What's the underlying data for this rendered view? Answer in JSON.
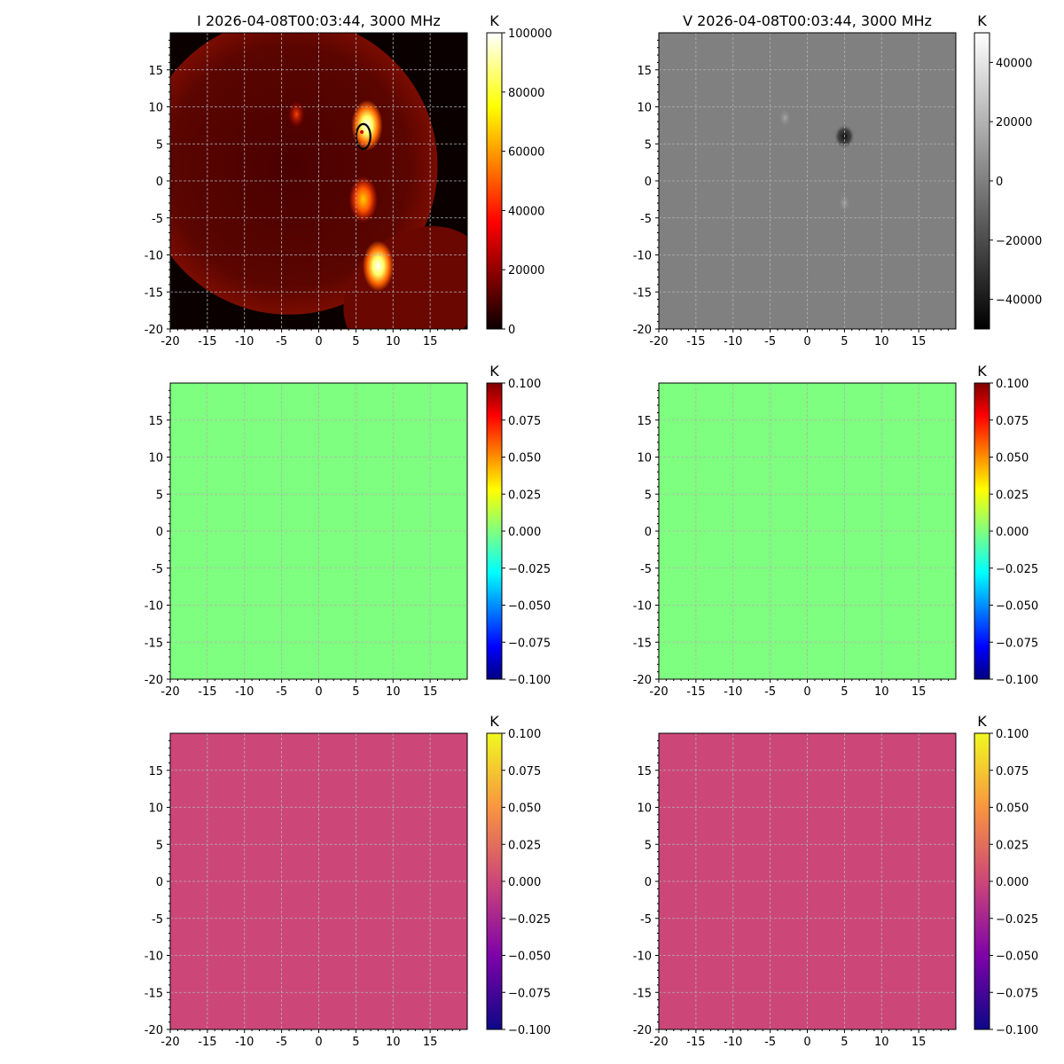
{
  "figure": {
    "title_I": "I 2026-04-08T00:03:44, 3000 MHz",
    "title_V": "V 2026-04-08T00:03:44, 3000 MHz",
    "unit": "K"
  },
  "chart_data": [
    {
      "panel": "I",
      "type": "heatmap",
      "title": "I 2026-04-08T00:03:44, 3000 MHz",
      "xlim": [
        -20,
        20
      ],
      "ylim": [
        -20,
        20
      ],
      "x_ticks": [
        "-20",
        "-15",
        "-10",
        "-5",
        "0",
        "5",
        "10",
        "15"
      ],
      "y_ticks": [
        "15",
        "10",
        "5",
        "0",
        "-5",
        "-10",
        "-15",
        "-20"
      ],
      "grid": true,
      "colormap": "hot",
      "colorbar": {
        "label": "K",
        "range": [
          0,
          100000
        ],
        "ticks": [
          "100000",
          "80000",
          "60000",
          "40000",
          "20000",
          "0"
        ]
      },
      "features": [
        {
          "kind": "disk",
          "center": [
            -4,
            2
          ],
          "radius": 20
        },
        {
          "kind": "limb_segment",
          "description": "second partial disk lower right"
        },
        {
          "kind": "bright_source",
          "x": 6.5,
          "y": 7.5,
          "peak_K": 100000
        },
        {
          "kind": "bright_source",
          "x": 6,
          "y": -2.5,
          "peak_K": 75000
        },
        {
          "kind": "bright_source",
          "x": 8,
          "y": -11.5,
          "peak_K": 90000
        },
        {
          "kind": "bright_source",
          "x": -3,
          "y": 9,
          "peak_K": 40000
        },
        {
          "kind": "contour",
          "x": 6,
          "y": 6,
          "color": "#000000"
        }
      ]
    },
    {
      "panel": "V",
      "type": "heatmap",
      "title": "V 2026-04-08T00:03:44, 3000 MHz",
      "xlim": [
        -20,
        20
      ],
      "ylim": [
        -20,
        20
      ],
      "x_ticks": [
        "-20",
        "-15",
        "-10",
        "-5",
        "0",
        "5",
        "10",
        "15"
      ],
      "y_ticks": [
        "15",
        "10",
        "5",
        "0",
        "-5",
        "-10",
        "-15",
        "-20"
      ],
      "grid": true,
      "colormap": "gray",
      "colorbar": {
        "label": "K",
        "range": [
          -50000,
          50000
        ],
        "ticks": [
          "40000",
          "20000",
          "0",
          "−20000",
          "−40000"
        ]
      },
      "features": [
        {
          "kind": "dark_source",
          "x": 5,
          "y": 6,
          "value_K": -45000
        },
        {
          "kind": "light_source",
          "x": 5,
          "y": -3,
          "value_K": 10000
        },
        {
          "kind": "light_source",
          "x": -3,
          "y": 8.5,
          "value_K": 6000
        }
      ]
    },
    {
      "panel": "middle-left",
      "type": "heatmap",
      "xlim": [
        -20,
        20
      ],
      "ylim": [
        -20,
        20
      ],
      "x_ticks": [
        "-20",
        "-15",
        "-10",
        "-5",
        "0",
        "5",
        "10",
        "15"
      ],
      "y_ticks": [
        "15",
        "10",
        "5",
        "0",
        "-5",
        "-10",
        "-15",
        "-20"
      ],
      "grid": true,
      "colormap": "jet",
      "fill_color": "#7fff7f",
      "colorbar": {
        "label": "K",
        "range": [
          -0.1,
          0.1
        ],
        "ticks": [
          "0.100",
          "0.075",
          "0.050",
          "0.025",
          "0.000",
          "−0.025",
          "−0.050",
          "−0.075",
          "−0.100"
        ]
      }
    },
    {
      "panel": "middle-right",
      "type": "heatmap",
      "xlim": [
        -20,
        20
      ],
      "ylim": [
        -20,
        20
      ],
      "x_ticks": [
        "-20",
        "-15",
        "-10",
        "-5",
        "0",
        "5",
        "10",
        "15"
      ],
      "y_ticks": [
        "15",
        "10",
        "5",
        "0",
        "-5",
        "-10",
        "-15",
        "-20"
      ],
      "grid": true,
      "colormap": "jet",
      "fill_color": "#7fff7f",
      "colorbar": {
        "label": "K",
        "range": [
          -0.1,
          0.1
        ],
        "ticks": [
          "0.100",
          "0.075",
          "0.050",
          "0.025",
          "0.000",
          "−0.025",
          "−0.050",
          "−0.075",
          "−0.100"
        ]
      }
    },
    {
      "panel": "bottom-left",
      "type": "heatmap",
      "xlim": [
        -20,
        20
      ],
      "ylim": [
        -20,
        20
      ],
      "x_ticks": [
        "-20",
        "-15",
        "-10",
        "-5",
        "0",
        "5",
        "10",
        "15"
      ],
      "y_ticks": [
        "15",
        "10",
        "5",
        "0",
        "-5",
        "-10",
        "-15",
        "-20"
      ],
      "grid": true,
      "colormap": "plasma",
      "fill_color": "#cc4778",
      "colorbar": {
        "label": "K",
        "range": [
          -0.1,
          0.1
        ],
        "ticks": [
          "0.100",
          "0.075",
          "0.050",
          "0.025",
          "0.000",
          "−0.025",
          "−0.050",
          "−0.075",
          "−0.100"
        ]
      }
    },
    {
      "panel": "bottom-right",
      "type": "heatmap",
      "xlim": [
        -20,
        20
      ],
      "ylim": [
        -20,
        20
      ],
      "x_ticks": [
        "-20",
        "-15",
        "-10",
        "-5",
        "0",
        "5",
        "10",
        "15"
      ],
      "y_ticks": [
        "15",
        "10",
        "5",
        "0",
        "-5",
        "-10",
        "-15",
        "-20"
      ],
      "grid": true,
      "colormap": "plasma",
      "fill_color": "#cc4778",
      "colorbar": {
        "label": "K",
        "range": [
          -0.1,
          0.1
        ],
        "ticks": [
          "0.100",
          "0.075",
          "0.050",
          "0.025",
          "0.000",
          "−0.025",
          "−0.050",
          "−0.075",
          "−0.100"
        ]
      }
    }
  ]
}
